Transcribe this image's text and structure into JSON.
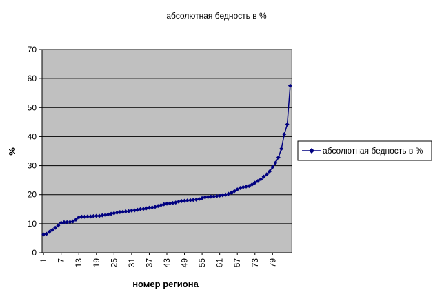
{
  "chart_data": {
    "type": "line",
    "title": "абсолютная бедность в %",
    "xlabel": "номер региона",
    "ylabel": "%",
    "ylim": [
      0,
      70
    ],
    "yticks": [
      "0",
      "10",
      "20",
      "30",
      "40",
      "50",
      "60",
      "70"
    ],
    "xticks": [
      "1",
      "7",
      "13",
      "19",
      "25",
      "31",
      "37",
      "43",
      "49",
      "55",
      "61",
      "67",
      "73",
      "79"
    ],
    "grid": true,
    "legend_position": "right",
    "series": [
      {
        "name": "абсолютная бедность в %",
        "color": "#000080",
        "marker": "diamond",
        "values": [
          6.3,
          6.5,
          7.2,
          7.9,
          8.6,
          9.4,
          10.3,
          10.5,
          10.5,
          10.6,
          10.8,
          11.4,
          12.2,
          12.4,
          12.4,
          12.5,
          12.5,
          12.6,
          12.7,
          12.7,
          12.9,
          13.0,
          13.2,
          13.4,
          13.6,
          13.8,
          14.0,
          14.1,
          14.2,
          14.3,
          14.5,
          14.6,
          14.8,
          15.0,
          15.1,
          15.3,
          15.5,
          15.6,
          15.8,
          16.1,
          16.4,
          16.7,
          16.9,
          17.0,
          17.1,
          17.3,
          17.6,
          17.8,
          17.9,
          18.0,
          18.1,
          18.2,
          18.3,
          18.5,
          18.8,
          19.1,
          19.2,
          19.3,
          19.4,
          19.5,
          19.7,
          19.8,
          20.0,
          20.3,
          20.7,
          21.2,
          21.8,
          22.3,
          22.6,
          22.8,
          23.0,
          23.5,
          24.1,
          24.7,
          25.3,
          26.2,
          27.0,
          28.0,
          29.5,
          31.0,
          32.8,
          35.8,
          40.8,
          44.2,
          57.5
        ]
      }
    ]
  }
}
